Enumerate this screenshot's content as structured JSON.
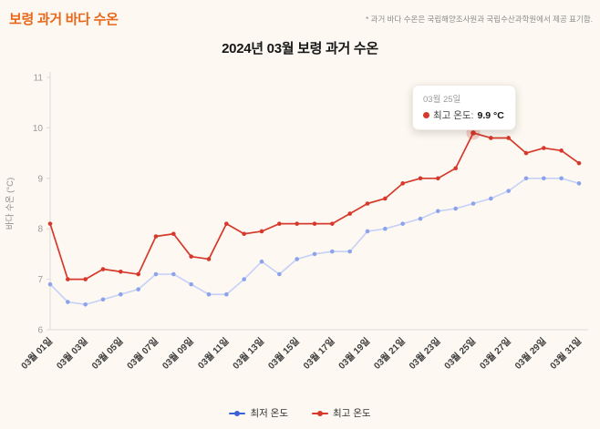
{
  "page": {
    "title": "보령 과거 바다 수온",
    "note": "* 과거 바다 수온은 국립해양조사원과 국립수산과학원에서 제공 표기함."
  },
  "chart_data": {
    "type": "line",
    "title": "2024년 03월 보령 과거 수온",
    "ylabel": "바다 수온 (°C)",
    "xlabel": "",
    "ylim": [
      6,
      11
    ],
    "yticks": [
      6,
      7,
      8,
      9,
      10,
      11
    ],
    "grid": false,
    "legend_position": "bottom",
    "days": 31,
    "x_labels": [
      "03월 01일",
      "03월 03일",
      "03월 05일",
      "03월 07일",
      "03월 09일",
      "03월 11일",
      "03월 13일",
      "03월 15일",
      "03월 17일",
      "03월 19일",
      "03월 21일",
      "03월 23일",
      "03월 25일",
      "03월 27일",
      "03월 29일",
      "03월 31일"
    ],
    "series": [
      {
        "name": "최저 온도",
        "line_color": "#c7d2f6",
        "marker_color": "#8ca3ec",
        "legend_color": "#3a62d6",
        "values": [
          6.9,
          6.55,
          6.5,
          6.6,
          6.7,
          6.8,
          7.1,
          7.1,
          6.9,
          6.7,
          6.7,
          7.0,
          7.35,
          7.1,
          7.4,
          7.5,
          7.55,
          7.55,
          7.95,
          8.0,
          8.1,
          8.2,
          8.35,
          8.4,
          8.5,
          8.6,
          8.75,
          9.0,
          9.0,
          9.0,
          8.9
        ]
      },
      {
        "name": "최고 온도",
        "line_color": "#d6392b",
        "marker_color": "#d6392b",
        "legend_color": "#d6392b",
        "values": [
          8.1,
          7.0,
          7.0,
          7.2,
          7.15,
          7.1,
          7.85,
          7.9,
          7.45,
          7.4,
          8.1,
          7.9,
          7.95,
          8.1,
          8.1,
          8.1,
          8.1,
          8.3,
          8.5,
          8.6,
          8.9,
          9.0,
          9.0,
          9.2,
          9.9,
          9.8,
          9.8,
          9.5,
          9.6,
          9.55,
          9.3
        ]
      }
    ],
    "annotation": {
      "day": 25,
      "date": "03월 25일",
      "label": "최고 온도:",
      "value": 9.9,
      "value_text": "9.9 °C"
    }
  }
}
